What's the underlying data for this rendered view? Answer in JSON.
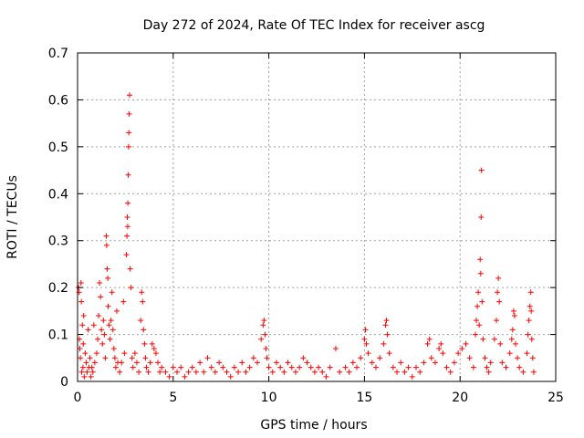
{
  "chart_data": {
    "type": "scatter",
    "title": "Day 272 of 2024, Rate Of TEC Index for receiver ascg",
    "xlabel": "GPS time / hours",
    "ylabel": "ROTI / TECUs",
    "xlim": [
      0,
      25
    ],
    "ylim": [
      0,
      0.7
    ],
    "xticks": [
      "0",
      "5",
      "10",
      "15",
      "20",
      "25"
    ],
    "yticks": [
      "0",
      "0.1",
      "0.2",
      "0.3",
      "0.4",
      "0.5",
      "0.6",
      "0.7"
    ],
    "grid": true,
    "marker": "+",
    "color": "#ff0000",
    "series": [
      {
        "points": [
          [
            0.05,
            0.2
          ],
          [
            0.08,
            0.19
          ],
          [
            0.1,
            0.09
          ],
          [
            0.12,
            0.07
          ],
          [
            0.15,
            0.05
          ],
          [
            0.18,
            0.21
          ],
          [
            0.2,
            0.17
          ],
          [
            0.22,
            0.02
          ],
          [
            0.25,
            0.12
          ],
          [
            0.28,
            0.03
          ],
          [
            0.3,
            0.08
          ],
          [
            0.32,
            0.14
          ],
          [
            0.35,
            0.01
          ],
          [
            0.4,
            0.06
          ],
          [
            0.45,
            0.04
          ],
          [
            0.5,
            0.02
          ],
          [
            0.55,
            0.11
          ],
          [
            0.6,
            0.03
          ],
          [
            0.65,
            0.05
          ],
          [
            0.7,
            0.01
          ],
          [
            0.75,
            0.03
          ],
          [
            0.8,
            0.02
          ],
          [
            0.85,
            0.12
          ],
          [
            0.9,
            0.04
          ],
          [
            1.0,
            0.06
          ],
          [
            1.05,
            0.09
          ],
          [
            1.1,
            0.14
          ],
          [
            1.15,
            0.21
          ],
          [
            1.2,
            0.18
          ],
          [
            1.25,
            0.11
          ],
          [
            1.3,
            0.08
          ],
          [
            1.35,
            0.13
          ],
          [
            1.4,
            0.1
          ],
          [
            1.45,
            0.05
          ],
          [
            1.5,
            0.31
          ],
          [
            1.52,
            0.29
          ],
          [
            1.55,
            0.24
          ],
          [
            1.58,
            0.22
          ],
          [
            1.6,
            0.16
          ],
          [
            1.65,
            0.12
          ],
          [
            1.7,
            0.09
          ],
          [
            1.75,
            0.13
          ],
          [
            1.8,
            0.19
          ],
          [
            1.85,
            0.11
          ],
          [
            1.9,
            0.07
          ],
          [
            1.95,
            0.05
          ],
          [
            2.0,
            0.03
          ],
          [
            2.05,
            0.15
          ],
          [
            2.1,
            0.04
          ],
          [
            2.2,
            0.02
          ],
          [
            2.3,
            0.04
          ],
          [
            2.4,
            0.17
          ],
          [
            2.45,
            0.06
          ],
          [
            2.55,
            0.27
          ],
          [
            2.58,
            0.31
          ],
          [
            2.6,
            0.35
          ],
          [
            2.62,
            0.33
          ],
          [
            2.63,
            0.38
          ],
          [
            2.65,
            0.44
          ],
          [
            2.67,
            0.5
          ],
          [
            2.68,
            0.53
          ],
          [
            2.7,
            0.57
          ],
          [
            2.72,
            0.61
          ],
          [
            2.75,
            0.24
          ],
          [
            2.8,
            0.2
          ],
          [
            2.85,
            0.05
          ],
          [
            2.9,
            0.03
          ],
          [
            3.0,
            0.06
          ],
          [
            3.1,
            0.04
          ],
          [
            3.2,
            0.02
          ],
          [
            3.3,
            0.13
          ],
          [
            3.35,
            0.19
          ],
          [
            3.4,
            0.17
          ],
          [
            3.45,
            0.11
          ],
          [
            3.5,
            0.08
          ],
          [
            3.55,
            0.05
          ],
          [
            3.6,
            0.03
          ],
          [
            3.7,
            0.02
          ],
          [
            3.8,
            0.04
          ],
          [
            3.9,
            0.08
          ],
          [
            4.0,
            0.07
          ],
          [
            4.1,
            0.06
          ],
          [
            4.2,
            0.04
          ],
          [
            4.3,
            0.02
          ],
          [
            4.4,
            0.03
          ],
          [
            4.6,
            0.02
          ],
          [
            4.8,
            0.01
          ],
          [
            5.0,
            0.03
          ],
          [
            5.2,
            0.02
          ],
          [
            5.4,
            0.03
          ],
          [
            5.6,
            0.01
          ],
          [
            5.8,
            0.02
          ],
          [
            6.0,
            0.03
          ],
          [
            6.2,
            0.02
          ],
          [
            6.4,
            0.04
          ],
          [
            6.6,
            0.02
          ],
          [
            6.8,
            0.05
          ],
          [
            7.0,
            0.03
          ],
          [
            7.2,
            0.02
          ],
          [
            7.4,
            0.04
          ],
          [
            7.6,
            0.03
          ],
          [
            7.8,
            0.02
          ],
          [
            8.0,
            0.01
          ],
          [
            8.2,
            0.03
          ],
          [
            8.4,
            0.02
          ],
          [
            8.6,
            0.04
          ],
          [
            8.8,
            0.02
          ],
          [
            9.0,
            0.03
          ],
          [
            9.2,
            0.05
          ],
          [
            9.4,
            0.04
          ],
          [
            9.6,
            0.09
          ],
          [
            9.7,
            0.12
          ],
          [
            9.75,
            0.13
          ],
          [
            9.8,
            0.1
          ],
          [
            9.85,
            0.07
          ],
          [
            9.9,
            0.05
          ],
          [
            10.0,
            0.03
          ],
          [
            10.2,
            0.02
          ],
          [
            10.4,
            0.04
          ],
          [
            10.6,
            0.03
          ],
          [
            10.8,
            0.02
          ],
          [
            11.0,
            0.04
          ],
          [
            11.2,
            0.03
          ],
          [
            11.4,
            0.02
          ],
          [
            11.6,
            0.03
          ],
          [
            11.8,
            0.05
          ],
          [
            12.0,
            0.04
          ],
          [
            12.2,
            0.03
          ],
          [
            12.4,
            0.02
          ],
          [
            12.6,
            0.03
          ],
          [
            12.8,
            0.02
          ],
          [
            13.0,
            0.01
          ],
          [
            13.2,
            0.03
          ],
          [
            13.5,
            0.07
          ],
          [
            13.7,
            0.02
          ],
          [
            14.0,
            0.03
          ],
          [
            14.2,
            0.02
          ],
          [
            14.4,
            0.04
          ],
          [
            14.6,
            0.03
          ],
          [
            14.8,
            0.05
          ],
          [
            15.0,
            0.09
          ],
          [
            15.05,
            0.11
          ],
          [
            15.1,
            0.08
          ],
          [
            15.2,
            0.06
          ],
          [
            15.4,
            0.04
          ],
          [
            15.6,
            0.03
          ],
          [
            15.8,
            0.05
          ],
          [
            16.0,
            0.08
          ],
          [
            16.1,
            0.12
          ],
          [
            16.15,
            0.13
          ],
          [
            16.2,
            0.1
          ],
          [
            16.3,
            0.06
          ],
          [
            16.5,
            0.03
          ],
          [
            16.7,
            0.02
          ],
          [
            16.9,
            0.04
          ],
          [
            17.1,
            0.02
          ],
          [
            17.3,
            0.03
          ],
          [
            17.5,
            0.01
          ],
          [
            17.7,
            0.03
          ],
          [
            17.9,
            0.02
          ],
          [
            18.1,
            0.04
          ],
          [
            18.3,
            0.08
          ],
          [
            18.4,
            0.09
          ],
          [
            18.5,
            0.05
          ],
          [
            18.7,
            0.04
          ],
          [
            18.9,
            0.07
          ],
          [
            19.0,
            0.08
          ],
          [
            19.1,
            0.06
          ],
          [
            19.3,
            0.03
          ],
          [
            19.5,
            0.02
          ],
          [
            19.7,
            0.04
          ],
          [
            19.9,
            0.06
          ],
          [
            20.1,
            0.07
          ],
          [
            20.3,
            0.08
          ],
          [
            20.5,
            0.05
          ],
          [
            20.7,
            0.03
          ],
          [
            20.8,
            0.1
          ],
          [
            20.85,
            0.13
          ],
          [
            20.9,
            0.16
          ],
          [
            20.95,
            0.19
          ],
          [
            21.0,
            0.12
          ],
          [
            21.05,
            0.26
          ],
          [
            21.08,
            0.23
          ],
          [
            21.1,
            0.35
          ],
          [
            21.12,
            0.45
          ],
          [
            21.15,
            0.17
          ],
          [
            21.2,
            0.09
          ],
          [
            21.3,
            0.05
          ],
          [
            21.4,
            0.03
          ],
          [
            21.5,
            0.02
          ],
          [
            21.6,
            0.04
          ],
          [
            21.8,
            0.09
          ],
          [
            21.9,
            0.13
          ],
          [
            21.95,
            0.19
          ],
          [
            22.0,
            0.22
          ],
          [
            22.05,
            0.17
          ],
          [
            22.1,
            0.08
          ],
          [
            22.2,
            0.04
          ],
          [
            22.4,
            0.03
          ],
          [
            22.6,
            0.06
          ],
          [
            22.7,
            0.09
          ],
          [
            22.75,
            0.11
          ],
          [
            22.8,
            0.15
          ],
          [
            22.85,
            0.14
          ],
          [
            22.9,
            0.08
          ],
          [
            23.0,
            0.05
          ],
          [
            23.1,
            0.03
          ],
          [
            23.3,
            0.02
          ],
          [
            23.5,
            0.06
          ],
          [
            23.55,
            0.1
          ],
          [
            23.6,
            0.13
          ],
          [
            23.65,
            0.16
          ],
          [
            23.7,
            0.19
          ],
          [
            23.72,
            0.15
          ],
          [
            23.75,
            0.09
          ],
          [
            23.8,
            0.05
          ],
          [
            23.85,
            0.02
          ]
        ]
      }
    ]
  }
}
